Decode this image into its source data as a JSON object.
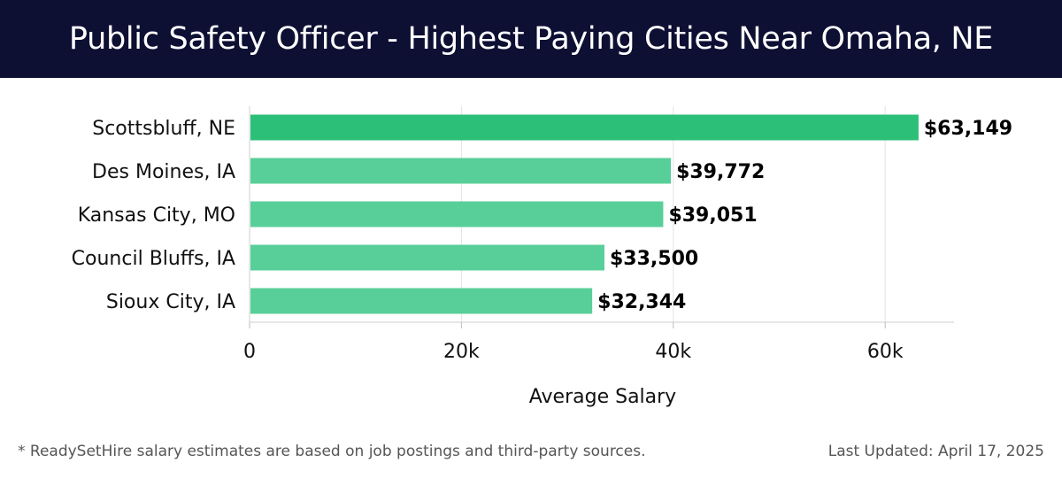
{
  "chart_data": {
    "type": "bar",
    "orientation": "horizontal",
    "title": "Public Safety Officer - Highest Paying Cities Near Omaha, NE",
    "categories": [
      "Scottsbluff, NE",
      "Des Moines, IA",
      "Kansas City, MO",
      "Council Bluffs, IA",
      "Sioux City, IA"
    ],
    "values": [
      63149,
      39772,
      39051,
      33500,
      32344
    ],
    "value_labels": [
      "$63,149",
      "$39,772",
      "$39,051",
      "$33,500",
      "$32,344"
    ],
    "xlabel": "Average Salary",
    "ylabel": "",
    "xlim": [
      0,
      66500
    ],
    "xticks": [
      0,
      20000,
      40000,
      60000
    ],
    "xtick_labels": [
      "0",
      "20k",
      "40k",
      "60k"
    ],
    "grid": true,
    "colors": {
      "highlight": "#2bbf78",
      "bar": "#58cf98",
      "grid": "#e3e3e3"
    }
  },
  "header": {
    "title": "Public Safety Officer - Highest Paying Cities Near Omaha, NE"
  },
  "footer": {
    "footnote": "* ReadySetHire salary estimates are based on job postings and third-party sources.",
    "updated": "Last Updated: April 17, 2025"
  }
}
